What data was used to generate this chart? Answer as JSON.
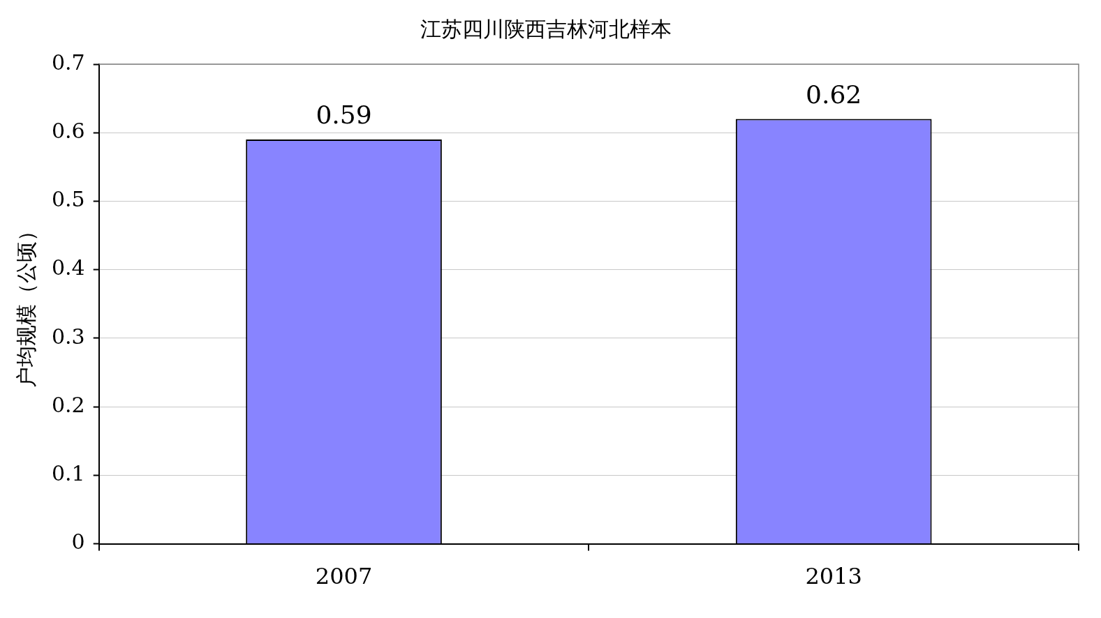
{
  "chart_data": {
    "type": "bar",
    "title": "江苏四川陕西吉林河北样本",
    "ylabel": "户均规模（公顷）",
    "categories": [
      "2007",
      "2013"
    ],
    "values": [
      0.59,
      0.62
    ],
    "color": "#8884ff",
    "ylim": [
      0,
      0.7
    ],
    "yticks": [
      0,
      0.1,
      0.2,
      0.3,
      0.4,
      0.5,
      0.6,
      0.7
    ],
    "grid": "y",
    "data_labels": true,
    "legend": false
  }
}
